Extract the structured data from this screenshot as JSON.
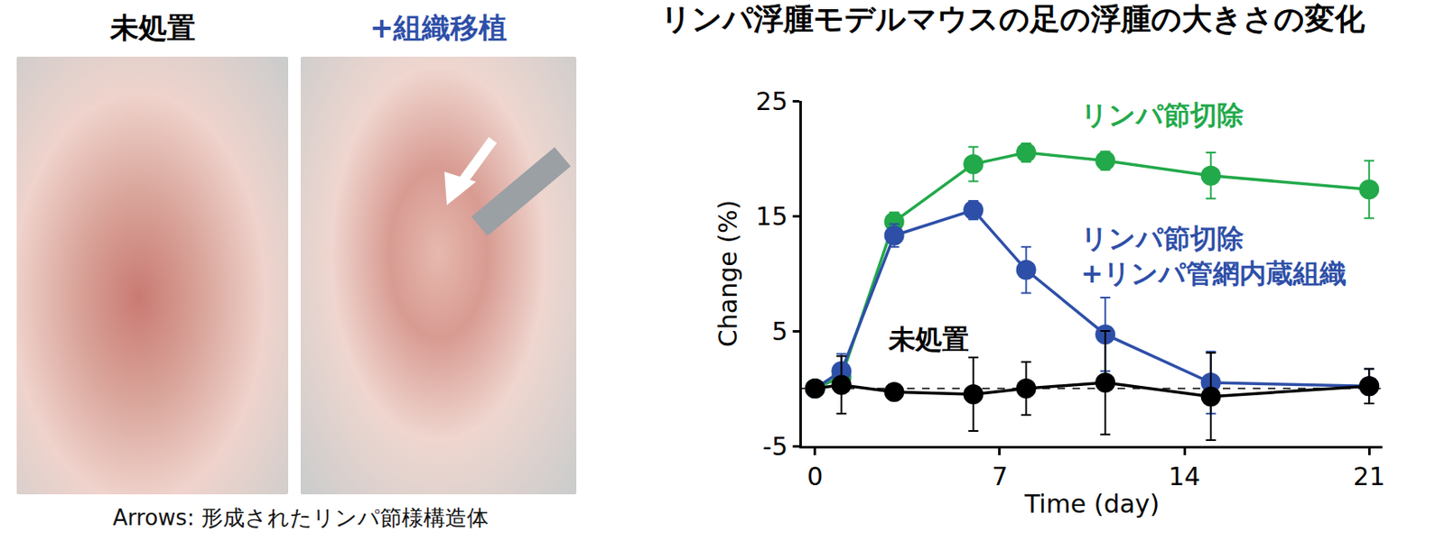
{
  "photos": {
    "panels": [
      {
        "label": "未処置",
        "color": "#000000"
      },
      {
        "label": "+組織移植",
        "color": "#2e4fa8"
      }
    ],
    "caption": "Arrows: 形成されたリンパ節様構造体"
  },
  "chart_data": {
    "type": "line",
    "title": "リンパ浮腫モデルマウスの足の浮腫の大きさの変化",
    "x_label": "Time (day)",
    "y_label": "Change (%)",
    "x": [
      0,
      1,
      3,
      6,
      8,
      11,
      15,
      21
    ],
    "series": [
      {
        "name": "リンパ節切除",
        "color": "#22a94a",
        "values": [
          0,
          1,
          14.5,
          19.5,
          20.5,
          19.8,
          18.5,
          17.3
        ],
        "errors": [
          0,
          1,
          0.8,
          1.5,
          0.8,
          0.8,
          2,
          2.5
        ]
      },
      {
        "name": "リンパ節切除+リンパ管網内蔵組織",
        "color": "#2e4fa8",
        "values": [
          0,
          1.5,
          13.3,
          15.5,
          10.3,
          4.7,
          0.5,
          0.2
        ],
        "errors": [
          0,
          1.5,
          1,
          0.8,
          2,
          3.2,
          2.7,
          1.5
        ]
      },
      {
        "name": "未処置",
        "color": "#000000",
        "values": [
          0,
          0.3,
          -0.3,
          -0.5,
          0,
          0.5,
          -0.7,
          0.2
        ],
        "errors": [
          0,
          2.5,
          0.5,
          3.2,
          2.3,
          4.5,
          3.8,
          1.5
        ]
      }
    ],
    "marker": "circle",
    "reference_line": {
      "y": 0,
      "line_style": "dash"
    },
    "xlim": [
      -0.5,
      21.5
    ],
    "xticks": [
      0,
      7,
      14,
      21
    ],
    "ylim": [
      -5,
      25
    ],
    "yticks": [
      -5,
      5,
      15,
      25
    ],
    "grid": false
  }
}
